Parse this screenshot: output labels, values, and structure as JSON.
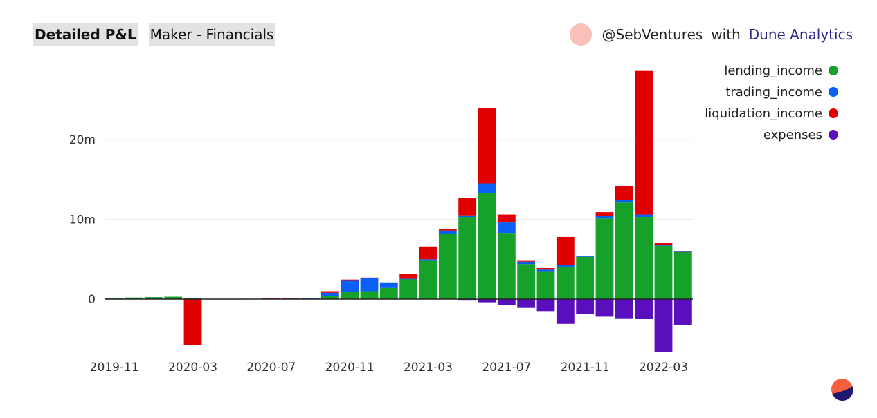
{
  "header": {
    "title_bold": "Detailed P&L",
    "title_query": "Maker - Financials",
    "credit_author": "@SebVentures",
    "credit_with": "with",
    "credit_link": "Dune Analytics"
  },
  "colors": {
    "lending_income": "#16a22a",
    "trading_income": "#0b5ff5",
    "liquidation_income": "#e00000",
    "expenses": "#5a0fbd",
    "grid": "#ececec",
    "axis": "#222222",
    "avatar": "#f8c0b8"
  },
  "chart_data": {
    "type": "bar",
    "stacked": true,
    "x": [
      "2019-11",
      "2019-12",
      "2020-01",
      "2020-02",
      "2020-03",
      "2020-04",
      "2020-05",
      "2020-06",
      "2020-07",
      "2020-08",
      "2020-09",
      "2020-10",
      "2020-11",
      "2020-12",
      "2021-01",
      "2021-02",
      "2021-03",
      "2021-04",
      "2021-05",
      "2021-06",
      "2021-07",
      "2021-08",
      "2021-09",
      "2021-10",
      "2021-11",
      "2021-12",
      "2022-01",
      "2022-02",
      "2022-03",
      "2022-04"
    ],
    "x_tick_labels": [
      "2019-11",
      "2020-03",
      "2020-07",
      "2020-11",
      "2021-03",
      "2021-07",
      "2021-11",
      "2022-03"
    ],
    "y_tick_labels": [
      "0",
      "10m",
      "20m"
    ],
    "y_ticks": [
      0,
      10000000,
      20000000
    ],
    "ylim": [
      -7000000,
      29000000
    ],
    "grid": true,
    "legend_position": "top-right",
    "series": [
      {
        "name": "lending_income",
        "values": [
          100000,
          200000,
          250000,
          300000,
          80000,
          20000,
          20000,
          30000,
          50000,
          60000,
          100000,
          400000,
          900000,
          1000000,
          1400000,
          2500000,
          4800000,
          8200000,
          10300000,
          13300000,
          8300000,
          4400000,
          3500000,
          4000000,
          5300000,
          10100000,
          12100000,
          10300000,
          6700000,
          5900000
        ]
      },
      {
        "name": "trading_income",
        "values": [
          0,
          0,
          0,
          0,
          100000,
          0,
          0,
          0,
          30000,
          40000,
          10000,
          400000,
          1500000,
          1600000,
          700000,
          50000,
          200000,
          400000,
          200000,
          1200000,
          1300000,
          300000,
          200000,
          300000,
          100000,
          300000,
          300000,
          300000,
          100000,
          50000
        ]
      },
      {
        "name": "liquidation_income",
        "values": [
          50000,
          0,
          0,
          0,
          -5800000,
          0,
          0,
          0,
          20000,
          20000,
          0,
          200000,
          50000,
          100000,
          0,
          600000,
          1600000,
          200000,
          2200000,
          9400000,
          1000000,
          100000,
          200000,
          3500000,
          0,
          500000,
          1800000,
          18000000,
          300000,
          100000
        ]
      },
      {
        "name": "expenses",
        "values": [
          0,
          0,
          0,
          0,
          0,
          0,
          0,
          0,
          0,
          0,
          0,
          0,
          0,
          0,
          0,
          0,
          0,
          0,
          -100000,
          -400000,
          -700000,
          -1100000,
          -1500000,
          -3100000,
          -1900000,
          -2200000,
          -2400000,
          -2500000,
          -6600000,
          -3200000
        ]
      }
    ]
  }
}
